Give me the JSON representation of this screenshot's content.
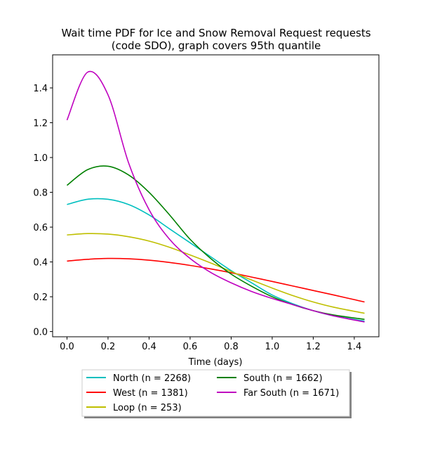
{
  "chart_data": {
    "type": "line",
    "title_line1": "Wait time PDF for Ice and Snow Removal Request  requests",
    "title_line2": "(code SDO), graph covers 95th quantile",
    "xlabel": "Time (days)",
    "ylabel": "",
    "xlim": [
      -0.07,
      1.52
    ],
    "ylim": [
      -0.03,
      1.59
    ],
    "xticks": [
      0.0,
      0.2,
      0.4,
      0.6,
      0.8,
      1.0,
      1.2,
      1.4
    ],
    "xtick_labels": [
      "0.0",
      "0.2",
      "0.4",
      "0.6",
      "0.8",
      "1.0",
      "1.2",
      "1.4"
    ],
    "yticks": [
      0.0,
      0.2,
      0.4,
      0.6,
      0.8,
      1.0,
      1.2,
      1.4
    ],
    "ytick_labels": [
      "0.0",
      "0.2",
      "0.4",
      "0.6",
      "0.8",
      "1.0",
      "1.2",
      "1.4"
    ],
    "grid": false,
    "legend_placement": "below plot, two columns",
    "x": [
      0.0,
      0.1,
      0.2,
      0.3,
      0.4,
      0.5,
      0.6,
      0.7,
      0.8,
      0.9,
      1.0,
      1.1,
      1.2,
      1.3,
      1.45
    ],
    "series": [
      {
        "name": "North (n = 2268)",
        "color": "#00bfbf",
        "values": [
          0.73,
          0.76,
          0.76,
          0.73,
          0.67,
          0.59,
          0.51,
          0.43,
          0.35,
          0.28,
          0.21,
          0.16,
          0.12,
          0.09,
          0.06
        ]
      },
      {
        "name": "West (n = 1381)",
        "color": "#ff0000",
        "values": [
          0.405,
          0.415,
          0.42,
          0.418,
          0.41,
          0.397,
          0.38,
          0.36,
          0.338,
          0.313,
          0.288,
          0.262,
          0.236,
          0.21,
          0.17
        ]
      },
      {
        "name": "Loop (n = 253)",
        "color": "#bfbf00",
        "values": [
          0.555,
          0.563,
          0.56,
          0.545,
          0.52,
          0.484,
          0.44,
          0.394,
          0.345,
          0.296,
          0.25,
          0.207,
          0.17,
          0.14,
          0.105
        ]
      },
      {
        "name": "South (n = 1662)",
        "color": "#008000",
        "values": [
          0.84,
          0.93,
          0.95,
          0.9,
          0.8,
          0.67,
          0.53,
          0.42,
          0.33,
          0.26,
          0.2,
          0.155,
          0.12,
          0.095,
          0.07
        ]
      },
      {
        "name": "Far South (n = 1671)",
        "color": "#bf00bf",
        "values": [
          1.215,
          1.49,
          1.36,
          0.97,
          0.7,
          0.53,
          0.42,
          0.34,
          0.28,
          0.23,
          0.19,
          0.155,
          0.12,
          0.09,
          0.055
        ]
      }
    ]
  }
}
